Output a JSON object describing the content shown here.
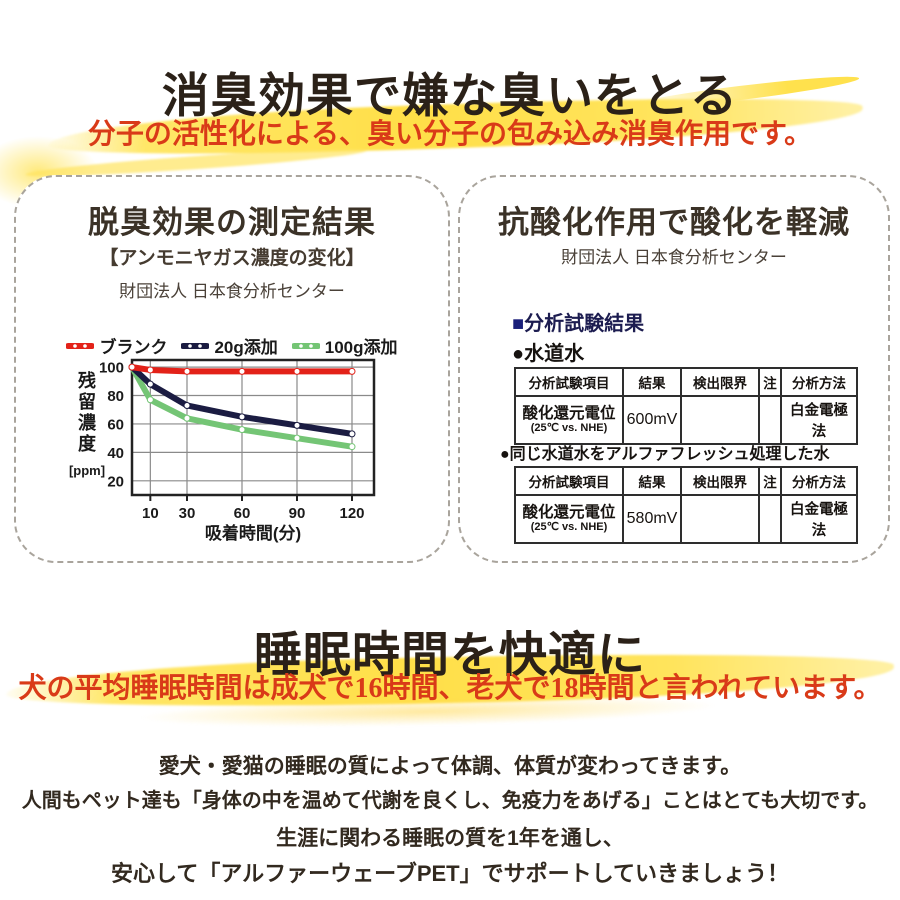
{
  "deodorant_section": {
    "title": "消臭効果で嫌な臭いをとる",
    "subtitle": "分子の活性化による、臭い分子の包み込み消臭作用です。"
  },
  "left_box": {
    "title": "脱臭効果の測定結果",
    "subtitle": "【アンモニヤガス濃度の変化】",
    "org": "財団法人 日本食分析センター"
  },
  "chart_data": {
    "type": "line",
    "title": "【アンモニヤガス濃度の変化】",
    "x": [
      0,
      10,
      30,
      60,
      90,
      120
    ],
    "series": [
      {
        "name": "ブランク",
        "color": "#e32219",
        "values": [
          100,
          98,
          97,
          97,
          97,
          97
        ]
      },
      {
        "name": "20g添加",
        "color": "#1b1c42",
        "values": [
          100,
          88,
          73,
          65,
          59,
          53
        ]
      },
      {
        "name": "100g添加",
        "color": "#74c575",
        "values": [
          100,
          77,
          64,
          56,
          50,
          44
        ]
      }
    ],
    "xlabel": "吸着時間(分)",
    "ylabel": "残留濃度",
    "ylabel_unit": "[ppm]",
    "xticks": [
      10,
      30,
      60,
      90,
      120
    ],
    "yticks": [
      100,
      80,
      60,
      40,
      20
    ],
    "xlim": [
      0,
      132
    ],
    "ylim": [
      10,
      105
    ],
    "grid": true,
    "legend_position": "top"
  },
  "right_box": {
    "title": "抗酸化作用で酸化を軽減",
    "org": "財団法人 日本食分析センター",
    "square_icon": "■",
    "circle_icon": "●",
    "result_heading": "分析試験結果",
    "sample1_label": "水道水",
    "sample2_label": "同じ水道水をアルファフレッシュ処理した水",
    "table_headers": [
      "分析試験項目",
      "結果",
      "検出限界",
      "注",
      "分析方法"
    ],
    "table1_row": {
      "item": "酸化還元電位",
      "item_sub": "(25℃ vs. NHE)",
      "result": "600mV",
      "limit": "",
      "note": "",
      "method": "白金電極法"
    },
    "table2_row": {
      "item": "酸化還元電位",
      "item_sub": "(25℃ vs. NHE)",
      "result": "580mV",
      "limit": "",
      "note": "",
      "method": "白金電極法"
    }
  },
  "sleep_section": {
    "title": "睡眠時間を快適に",
    "subtitle": "犬の平均睡眠時間は成犬で16時間、老犬で18時間と言われています。",
    "paragraphs": [
      "愛犬・愛猫の睡眠の質によって体調、体質が変わってきます。",
      "人間もペット達も「身体の中を温めて代謝を良くし、免疫力をあげる」ことはとても大切です。",
      "生涯に関わる睡眠の質を1年を通し、",
      "安心して「アルファーウェーブPET」でサポートしていきましょう！"
    ]
  },
  "colors": {
    "accent_red_text": "#d93a18",
    "highlight_yellow": "#ffe14d",
    "navy_heading": "#1a1f7a",
    "title_text": "#2b2118"
  }
}
